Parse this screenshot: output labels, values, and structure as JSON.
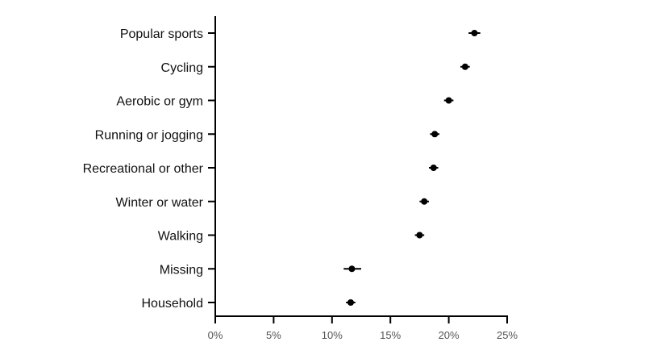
{
  "chart_data": {
    "type": "scatter",
    "title": "",
    "xlabel": "",
    "ylabel": "",
    "grid": false,
    "xlim": [
      0,
      25
    ],
    "x_ticks": [
      0,
      5,
      10,
      15,
      20,
      25
    ],
    "x_tick_labels": [
      "0%",
      "5%",
      "10%",
      "15%",
      "20%",
      "25%"
    ],
    "categories": [
      "Popular sports",
      "Cycling",
      "Aerobic or gym",
      "Running or jogging",
      "Recreational or other",
      "Winter or water",
      "Walking",
      "Missing",
      "Household"
    ],
    "series": [
      {
        "values": [
          22.2,
          21.4,
          20.0,
          18.8,
          18.7,
          17.9,
          17.5,
          11.7,
          11.6
        ],
        "ci_low": [
          21.7,
          21.0,
          19.6,
          18.4,
          18.3,
          17.5,
          17.1,
          11.0,
          11.2
        ],
        "ci_high": [
          22.7,
          21.8,
          20.4,
          19.2,
          19.1,
          18.3,
          17.9,
          12.5,
          12.0
        ]
      }
    ],
    "colors": {
      "marker": "#000000",
      "axis": "#000000"
    }
  }
}
